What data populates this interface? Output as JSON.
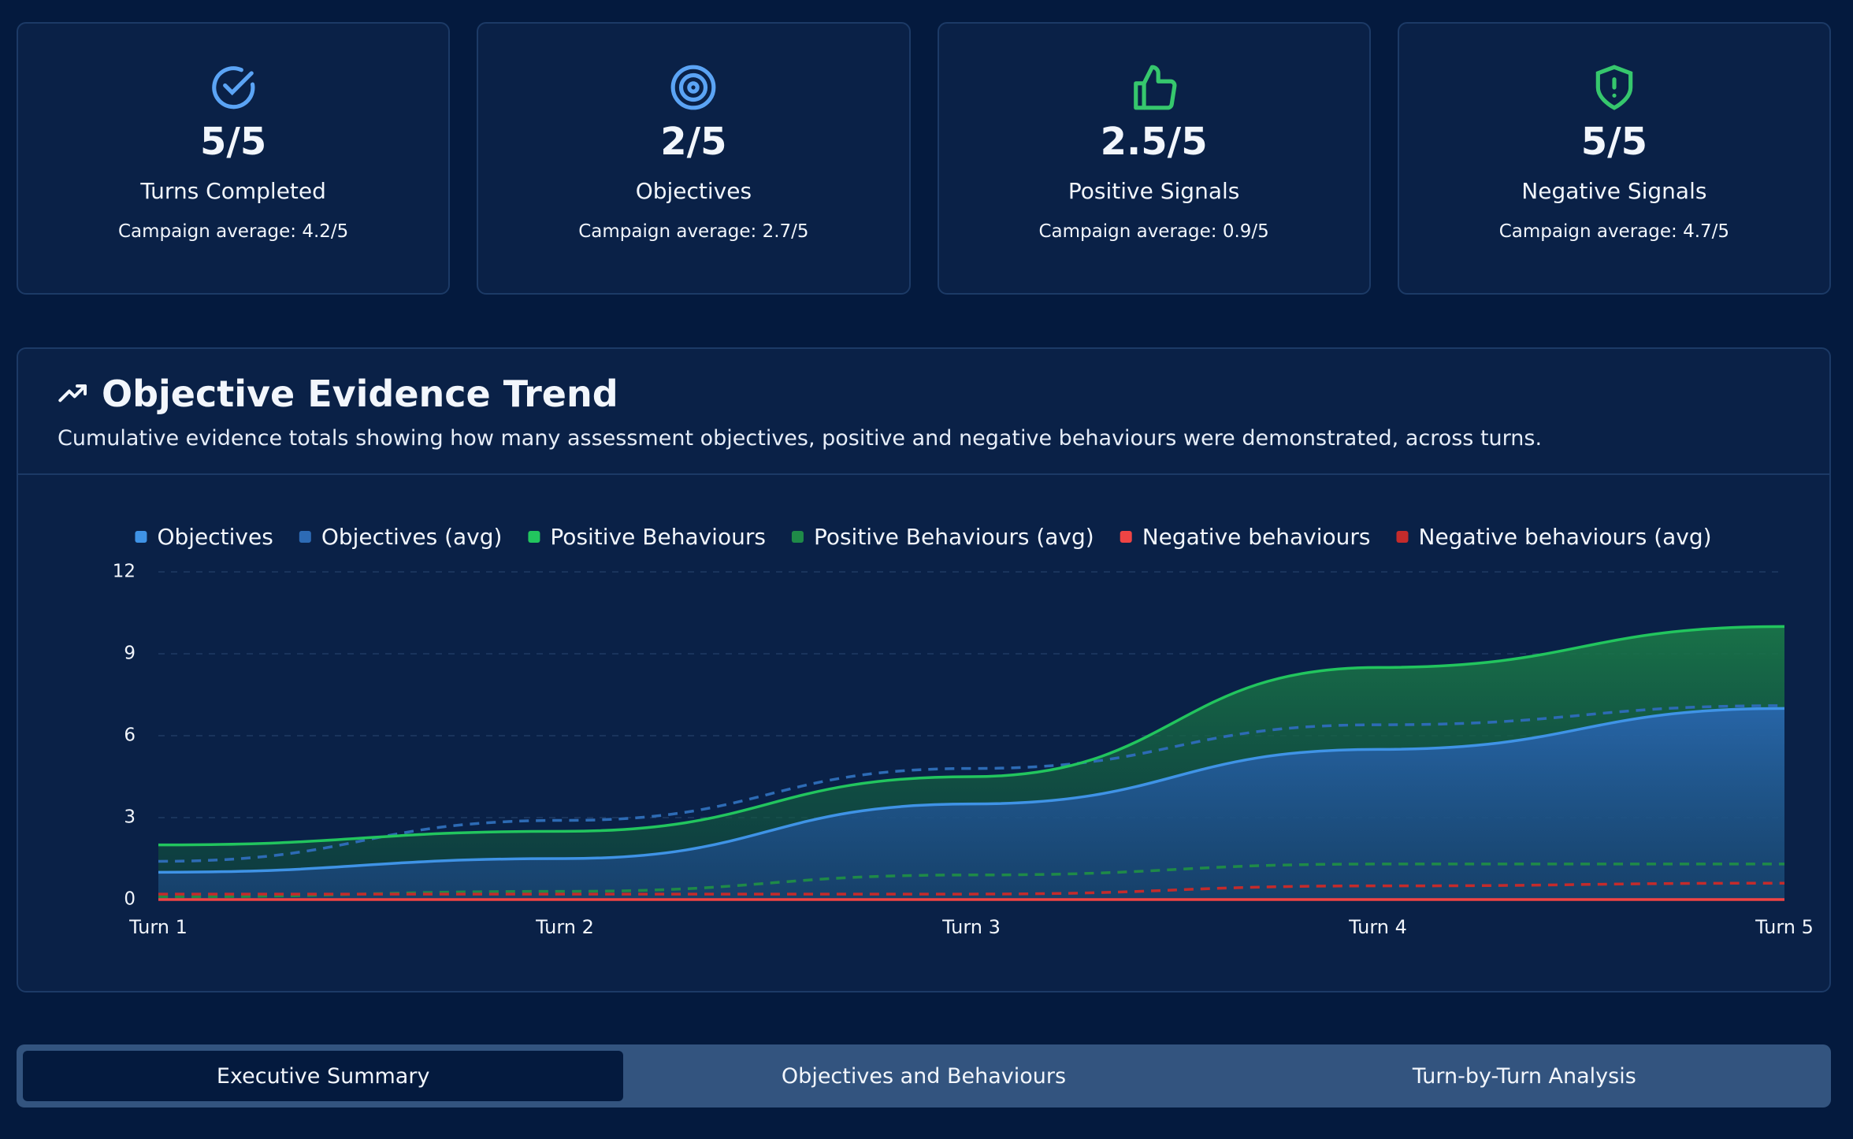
{
  "cards": [
    {
      "value": "5/5",
      "label": "Turns Completed",
      "average": "Campaign average: 4.2/5"
    },
    {
      "value": "2/5",
      "label": "Objectives",
      "average": "Campaign average: 2.7/5"
    },
    {
      "value": "2.5/5",
      "label": "Positive Signals",
      "average": "Campaign average: 0.9/5"
    },
    {
      "value": "5/5",
      "label": "Negative Signals",
      "average": "Campaign average: 4.7/5"
    }
  ],
  "chart_data": {
    "type": "line",
    "title": "Objective Evidence Trend",
    "subtitle": "Cumulative evidence totals showing how many assessment objectives, positive and negative behaviours were demonstrated, across turns.",
    "categories": [
      "Turn 1",
      "Turn 2",
      "Turn 3",
      "Turn 4",
      "Turn 5"
    ],
    "ylim": [
      0,
      12
    ],
    "yticks": [
      0,
      3,
      6,
      9,
      12
    ],
    "grid": true,
    "series": [
      {
        "name": "Objectives",
        "color": "#3f93e6",
        "fill": true,
        "dashed": false,
        "values": [
          1,
          1.5,
          3.5,
          5.5,
          7
        ]
      },
      {
        "name": "Objectives (avg)",
        "color": "#2d6bb5",
        "fill": false,
        "dashed": true,
        "values": [
          1.4,
          2.9,
          4.8,
          6.4,
          7.1
        ]
      },
      {
        "name": "Positive Behaviours",
        "color": "#22c55e",
        "fill": true,
        "dashed": false,
        "values": [
          2,
          2.5,
          4.5,
          8.5,
          10
        ]
      },
      {
        "name": "Positive Behaviours (avg)",
        "color": "#1f8a48",
        "fill": false,
        "dashed": true,
        "values": [
          0.1,
          0.3,
          0.9,
          1.3,
          1.3
        ]
      },
      {
        "name": "Negative behaviours",
        "color": "#ef4444",
        "fill": false,
        "dashed": false,
        "values": [
          0,
          0,
          0,
          0,
          0
        ]
      },
      {
        "name": "Negative behaviours (avg)",
        "color": "#c42b2b",
        "fill": false,
        "dashed": true,
        "values": [
          0.2,
          0.2,
          0.2,
          0.5,
          0.6
        ]
      }
    ]
  },
  "tabs": [
    "Executive Summary",
    "Objectives and Behaviours",
    "Turn-by-Turn Analysis"
  ]
}
